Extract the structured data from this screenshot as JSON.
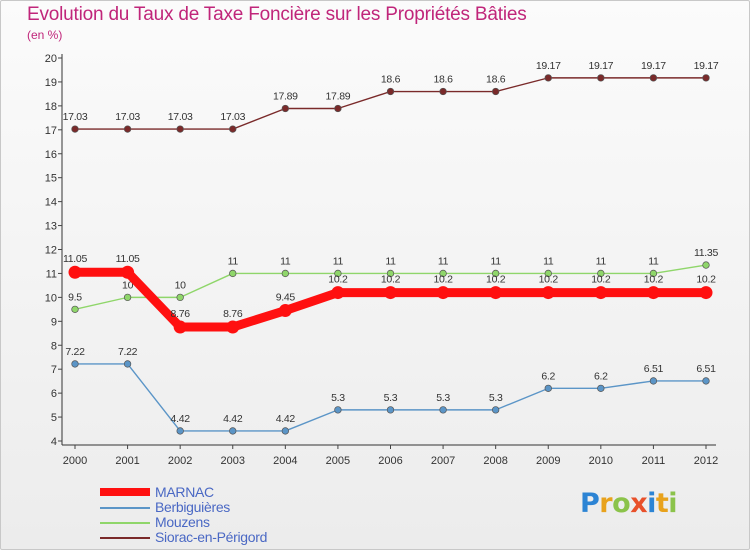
{
  "header": {
    "title": "Evolution du Taux de Taxe Foncière sur les Propriétés Bâties",
    "unit": "(en %)"
  },
  "chart_data": {
    "type": "line",
    "title": "Evolution du Taux de Taxe Foncière sur les Propriétés Bâties",
    "ylabel": "(en %)",
    "xlabel": "",
    "ylim": [
      4,
      20
    ],
    "yticks": [
      "4",
      "5",
      "6",
      "7",
      "8",
      "9",
      "10",
      "11",
      "12",
      "13",
      "14",
      "15",
      "16",
      "17",
      "18",
      "19",
      "20"
    ],
    "categories": [
      "2000",
      "2001",
      "2002",
      "2003",
      "2004",
      "2005",
      "2006",
      "2007",
      "2008",
      "2009",
      "2010",
      "2011",
      "2012"
    ],
    "grid": false,
    "legend": "bottom-left",
    "series": [
      {
        "name": "Siorac-en-Périgord",
        "color": "#7a2a2a",
        "values": [
          17.03,
          17.03,
          17.03,
          17.03,
          17.89,
          17.89,
          18.6,
          18.6,
          18.6,
          19.17,
          19.17,
          19.17,
          19.17
        ],
        "labels": [
          "17.03",
          "17.03",
          "17.03",
          "17.03",
          "17.89",
          "17.89",
          "18.6",
          "18.6",
          "18.6",
          "19.17",
          "19.17",
          "19.17",
          "19.17"
        ]
      },
      {
        "name": "Mouzens",
        "color": "#8fd66a",
        "values": [
          9.5,
          10,
          10,
          11,
          11,
          11,
          11,
          11,
          11,
          11,
          11,
          11,
          11.35
        ],
        "labels": [
          "9.5",
          "10",
          "10",
          "11",
          "11",
          "11",
          "11",
          "11",
          "11",
          "11",
          "11",
          "11",
          "11.35"
        ]
      },
      {
        "name": "Berbiguières",
        "color": "#5b95c7",
        "values": [
          7.22,
          7.22,
          4.42,
          4.42,
          4.42,
          5.3,
          5.3,
          5.3,
          5.3,
          6.2,
          6.2,
          6.51,
          6.51
        ],
        "labels": [
          "7.22",
          "7.22",
          "4.42",
          "4.42",
          "4.42",
          "5.3",
          "5.3",
          "5.3",
          "5.3",
          "6.2",
          "6.2",
          "6.51",
          "6.51"
        ]
      },
      {
        "name": "MARNAC",
        "color": "#ff1010",
        "values": [
          11.05,
          11.05,
          8.76,
          8.76,
          9.45,
          10.2,
          10.2,
          10.2,
          10.2,
          10.2,
          10.2,
          10.2,
          10.2
        ],
        "labels": [
          "11.05",
          "11.05",
          "8.76",
          "8.76",
          "9.45",
          "10.2",
          "10.2",
          "10.2",
          "10.2",
          "10.2",
          "10.2",
          "10.2",
          "10.2"
        ]
      }
    ]
  },
  "legend": {
    "items": [
      {
        "label": "MARNAC",
        "color": "#ff1010"
      },
      {
        "label": "Berbiguières",
        "color": "#5b95c7"
      },
      {
        "label": "Mouzens",
        "color": "#8fd66a"
      },
      {
        "label": "Siorac-en-Périgord",
        "color": "#7a2a2a"
      }
    ]
  },
  "brand": {
    "letters": [
      "P",
      "r",
      "o",
      "x",
      "i",
      "t",
      "i"
    ],
    "colors": [
      "#2c84d4",
      "#e8a21c",
      "#8bc34a",
      "#e8502a",
      "#2c84d4",
      "#e8a21c",
      "#8bc34a"
    ]
  }
}
